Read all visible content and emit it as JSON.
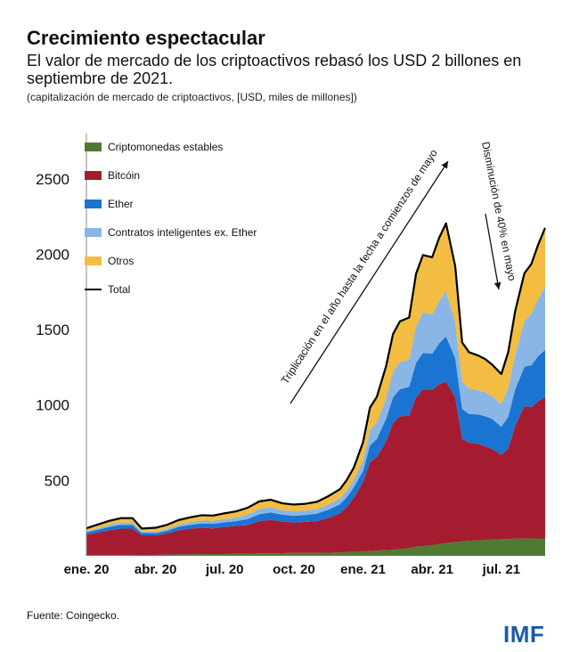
{
  "header": {
    "title": "Crecimiento espectacular",
    "subtitle": "El valor de mercado de los criptoactivos rebasó los USD 2 billones en septiembre de 2021.",
    "units": "(capitalización de mercado de criptoactivos, [USD, miles de millones])"
  },
  "footer": {
    "source": "Fuente: Coingecko.",
    "logo": "IMF"
  },
  "chart_data": {
    "type": "area",
    "stacked": true,
    "ylim": [
      0,
      2800
    ],
    "yticks": [
      500,
      1000,
      1500,
      2000,
      2500
    ],
    "xticks": [
      {
        "label": "ene. 20",
        "t": 0
      },
      {
        "label": "abr. 20",
        "t": 3
      },
      {
        "label": "jul. 20",
        "t": 6
      },
      {
        "label": "oct. 20",
        "t": 9
      },
      {
        "label": "ene. 21",
        "t": 12
      },
      {
        "label": "abr. 21",
        "t": 15
      },
      {
        "label": "jul. 21",
        "t": 18
      }
    ],
    "x": [
      0,
      0.5,
      1,
      1.5,
      2,
      2.4,
      3,
      3.5,
      4,
      4.5,
      5,
      5.5,
      6,
      6.5,
      7,
      7.5,
      8,
      8.5,
      9,
      9.5,
      10,
      10.5,
      11,
      11.3,
      11.6,
      12,
      12.3,
      12.6,
      13,
      13.3,
      13.6,
      14,
      14.3,
      14.6,
      15,
      15.3,
      15.6,
      16,
      16.3,
      16.6,
      17,
      17.3,
      17.6,
      18,
      18.3,
      18.6,
      19,
      19.3,
      19.6,
      19.9
    ],
    "series": [
      {
        "name": "Criptomonedas estables",
        "color": "#4e7b31",
        "values": [
          5,
          5,
          5,
          5,
          5,
          6,
          6,
          8,
          10,
          10,
          11,
          12,
          12,
          13,
          14,
          16,
          17,
          18,
          20,
          20,
          20,
          21,
          22,
          24,
          25,
          28,
          32,
          35,
          38,
          40,
          45,
          50,
          60,
          65,
          70,
          78,
          85,
          90,
          95,
          100,
          103,
          105,
          108,
          110,
          112,
          113,
          114,
          115,
          115,
          115
        ]
      },
      {
        "name": "Bitcóin",
        "color": "#a51c30",
        "values": [
          135,
          150,
          165,
          175,
          175,
          130,
          130,
          140,
          160,
          170,
          175,
          170,
          180,
          185,
          190,
          215,
          220,
          210,
          200,
          205,
          210,
          230,
          260,
          300,
          360,
          460,
          590,
          620,
          720,
          840,
          880,
          880,
          990,
          1040,
          1030,
          1060,
          1070,
          960,
          680,
          650,
          640,
          620,
          600,
          560,
          600,
          750,
          880,
          870,
          910,
          940
        ]
      },
      {
        "name": "Ether",
        "color": "#1a74d2",
        "values": [
          15,
          18,
          22,
          25,
          25,
          15,
          15,
          18,
          22,
          25,
          28,
          30,
          30,
          32,
          40,
          45,
          50,
          45,
          45,
          45,
          50,
          55,
          60,
          65,
          70,
          75,
          110,
          120,
          150,
          170,
          180,
          190,
          230,
          240,
          240,
          270,
          300,
          260,
          200,
          190,
          195,
          200,
          200,
          185,
          210,
          240,
          260,
          280,
          300,
          310
        ]
      },
      {
        "name": "Contratos inteligentes ex. Ether",
        "color": "#8ab6e6",
        "values": [
          8,
          10,
          12,
          15,
          15,
          10,
          10,
          12,
          15,
          18,
          20,
          20,
          22,
          25,
          30,
          35,
          35,
          30,
          30,
          30,
          30,
          35,
          40,
          45,
          50,
          70,
          100,
          110,
          140,
          170,
          180,
          180,
          240,
          270,
          260,
          280,
          300,
          240,
          180,
          170,
          160,
          160,
          150,
          150,
          190,
          230,
          300,
          340,
          380,
          420
        ]
      },
      {
        "name": "Otros",
        "color": "#f2bd42",
        "values": [
          20,
          25,
          28,
          30,
          30,
          20,
          25,
          28,
          30,
          32,
          35,
          35,
          38,
          40,
          45,
          50,
          50,
          45,
          45,
          45,
          48,
          55,
          60,
          70,
          80,
          120,
          150,
          170,
          210,
          250,
          270,
          280,
          350,
          380,
          380,
          420,
          450,
          370,
          260,
          240,
          230,
          220,
          210,
          200,
          240,
          290,
          320,
          330,
          360,
          390
        ]
      }
    ],
    "total": {
      "name": "Total",
      "color": "#000000"
    },
    "annotations": [
      {
        "text": "Triplicación en el año hasta la fecha a comienzos de mayo"
      },
      {
        "text": "Disminución de 40% en mayo"
      }
    ]
  }
}
